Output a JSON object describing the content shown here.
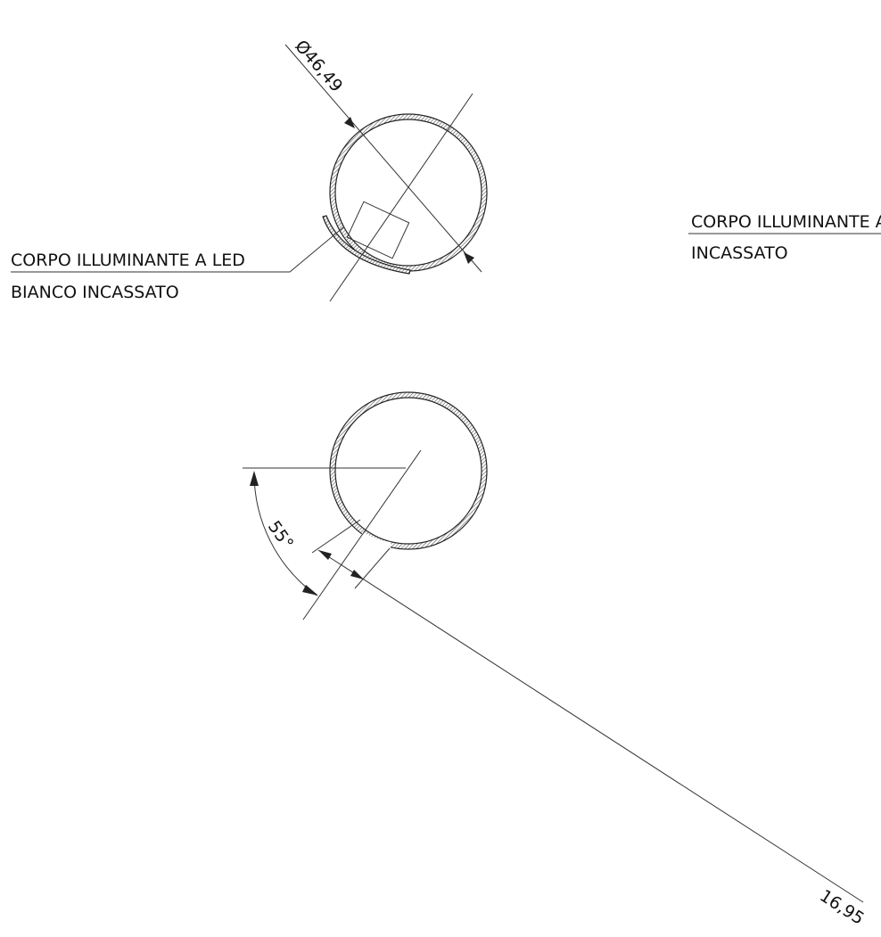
{
  "diameter_label": "Ø46,49",
  "left_callout": {
    "line1": "CORPO ILLUMINANTE A LED",
    "line2": "BIANCO INCASSATO"
  },
  "right_callout": {
    "line1": "CORPO ILLUMINANTE A",
    "line2": "INCASSATO"
  },
  "angle_label": "55°",
  "length_label": "16,95"
}
